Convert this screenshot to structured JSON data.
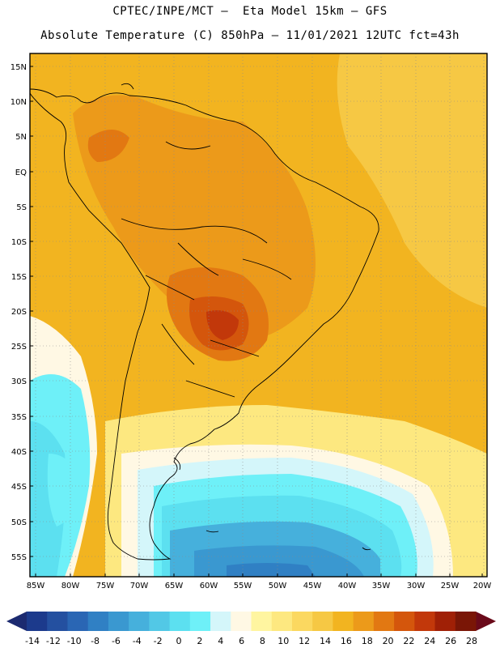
{
  "header": {
    "line1": "CPTEC/INPE/MCT –  Eta Model 15km – GFS",
    "line2": "Absolute Temperature (C) 850hPa – 11/01/2021 12UTC fct=43h"
  },
  "map": {
    "lat_labels": [
      "15N",
      "10N",
      "5N",
      "EQ",
      "5S",
      "10S",
      "15S",
      "20S",
      "25S",
      "30S",
      "35S",
      "40S",
      "45S",
      "50S",
      "55S"
    ],
    "lon_labels": [
      "85W",
      "80W",
      "75W",
      "70W",
      "65W",
      "60W",
      "55W",
      "50W",
      "45W",
      "40W",
      "35W",
      "30W",
      "25W",
      "20W"
    ]
  },
  "colorbar": {
    "labels": [
      "-14",
      "-12",
      "-10",
      "-8",
      "-6",
      "-4",
      "-2",
      "0",
      "2",
      "4",
      "6",
      "8",
      "10",
      "12",
      "14",
      "16",
      "18",
      "20",
      "22",
      "24",
      "26",
      "28"
    ],
    "colors": [
      "#1c3a8c",
      "#2450a0",
      "#2a66b4",
      "#3080c4",
      "#3a98d0",
      "#46b0dc",
      "#52c8e6",
      "#5ce0f0",
      "#6ef0f8",
      "#d4f6fa",
      "#fff8e4",
      "#fff5a0",
      "#fde880",
      "#fbd860",
      "#f6c844",
      "#f2b420",
      "#ec9a1a",
      "#e27812",
      "#d4560c",
      "#c2380a",
      "#a02006",
      "#7a1606"
    ],
    "left_arrow_color": "#1c2a70",
    "right_arrow_color": "#6a0a1a"
  }
}
